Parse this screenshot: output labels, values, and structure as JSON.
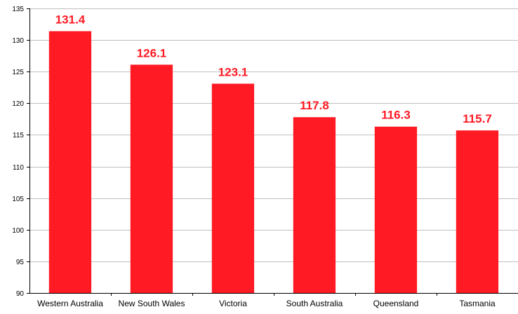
{
  "chart_data": {
    "type": "bar",
    "categories": [
      "Western Australia",
      "New South Wales",
      "Victoria",
      "South Australia",
      "Queensland",
      "Tasmania"
    ],
    "values": [
      131.4,
      126.1,
      123.1,
      117.8,
      116.3,
      115.7
    ],
    "data_labels": [
      "131.4",
      "126.1",
      "123.1",
      "117.8",
      "116.3",
      "115.7"
    ],
    "title": "",
    "xlabel": "",
    "ylabel": "",
    "ylim": [
      90,
      135
    ],
    "yticks": [
      90,
      95,
      100,
      105,
      110,
      115,
      120,
      125,
      130,
      135
    ],
    "grid": true,
    "legend": "none",
    "bar_color": "#ff1a24",
    "label_color": "#ff1a24"
  }
}
